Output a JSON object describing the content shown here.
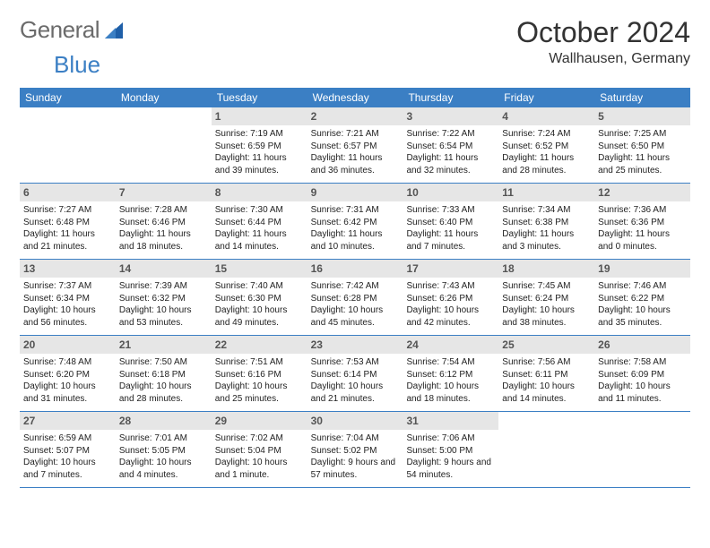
{
  "logo": {
    "word1": "General",
    "word2": "Blue"
  },
  "title": "October 2024",
  "location": "Wallhausen, Germany",
  "colors": {
    "header_bg": "#3b7fc4",
    "header_text": "#ffffff",
    "daynum_bg": "#e6e6e6",
    "daynum_text": "#555555",
    "body_text": "#222222",
    "rule": "#3b7fc4",
    "logo_gray": "#6b6b6b",
    "logo_blue": "#3b7fc4",
    "page_bg": "#ffffff"
  },
  "typography": {
    "title_fontsize": 32,
    "location_fontsize": 16,
    "weekday_fontsize": 12,
    "daynum_fontsize": 12,
    "body_fontsize": 10
  },
  "weekdays": [
    "Sunday",
    "Monday",
    "Tuesday",
    "Wednesday",
    "Thursday",
    "Friday",
    "Saturday"
  ],
  "weeks": [
    [
      null,
      null,
      {
        "n": "1",
        "sunrise": "7:19 AM",
        "sunset": "6:59 PM",
        "day_h": "11",
        "day_m": "39"
      },
      {
        "n": "2",
        "sunrise": "7:21 AM",
        "sunset": "6:57 PM",
        "day_h": "11",
        "day_m": "36"
      },
      {
        "n": "3",
        "sunrise": "7:22 AM",
        "sunset": "6:54 PM",
        "day_h": "11",
        "day_m": "32"
      },
      {
        "n": "4",
        "sunrise": "7:24 AM",
        "sunset": "6:52 PM",
        "day_h": "11",
        "day_m": "28"
      },
      {
        "n": "5",
        "sunrise": "7:25 AM",
        "sunset": "6:50 PM",
        "day_h": "11",
        "day_m": "25"
      }
    ],
    [
      {
        "n": "6",
        "sunrise": "7:27 AM",
        "sunset": "6:48 PM",
        "day_h": "11",
        "day_m": "21"
      },
      {
        "n": "7",
        "sunrise": "7:28 AM",
        "sunset": "6:46 PM",
        "day_h": "11",
        "day_m": "18"
      },
      {
        "n": "8",
        "sunrise": "7:30 AM",
        "sunset": "6:44 PM",
        "day_h": "11",
        "day_m": "14"
      },
      {
        "n": "9",
        "sunrise": "7:31 AM",
        "sunset": "6:42 PM",
        "day_h": "11",
        "day_m": "10"
      },
      {
        "n": "10",
        "sunrise": "7:33 AM",
        "sunset": "6:40 PM",
        "day_h": "11",
        "day_m": "7"
      },
      {
        "n": "11",
        "sunrise": "7:34 AM",
        "sunset": "6:38 PM",
        "day_h": "11",
        "day_m": "3"
      },
      {
        "n": "12",
        "sunrise": "7:36 AM",
        "sunset": "6:36 PM",
        "day_h": "11",
        "day_m": "0"
      }
    ],
    [
      {
        "n": "13",
        "sunrise": "7:37 AM",
        "sunset": "6:34 PM",
        "day_h": "10",
        "day_m": "56"
      },
      {
        "n": "14",
        "sunrise": "7:39 AM",
        "sunset": "6:32 PM",
        "day_h": "10",
        "day_m": "53"
      },
      {
        "n": "15",
        "sunrise": "7:40 AM",
        "sunset": "6:30 PM",
        "day_h": "10",
        "day_m": "49"
      },
      {
        "n": "16",
        "sunrise": "7:42 AM",
        "sunset": "6:28 PM",
        "day_h": "10",
        "day_m": "45"
      },
      {
        "n": "17",
        "sunrise": "7:43 AM",
        "sunset": "6:26 PM",
        "day_h": "10",
        "day_m": "42"
      },
      {
        "n": "18",
        "sunrise": "7:45 AM",
        "sunset": "6:24 PM",
        "day_h": "10",
        "day_m": "38"
      },
      {
        "n": "19",
        "sunrise": "7:46 AM",
        "sunset": "6:22 PM",
        "day_h": "10",
        "day_m": "35"
      }
    ],
    [
      {
        "n": "20",
        "sunrise": "7:48 AM",
        "sunset": "6:20 PM",
        "day_h": "10",
        "day_m": "31"
      },
      {
        "n": "21",
        "sunrise": "7:50 AM",
        "sunset": "6:18 PM",
        "day_h": "10",
        "day_m": "28"
      },
      {
        "n": "22",
        "sunrise": "7:51 AM",
        "sunset": "6:16 PM",
        "day_h": "10",
        "day_m": "25"
      },
      {
        "n": "23",
        "sunrise": "7:53 AM",
        "sunset": "6:14 PM",
        "day_h": "10",
        "day_m": "21"
      },
      {
        "n": "24",
        "sunrise": "7:54 AM",
        "sunset": "6:12 PM",
        "day_h": "10",
        "day_m": "18"
      },
      {
        "n": "25",
        "sunrise": "7:56 AM",
        "sunset": "6:11 PM",
        "day_h": "10",
        "day_m": "14"
      },
      {
        "n": "26",
        "sunrise": "7:58 AM",
        "sunset": "6:09 PM",
        "day_h": "10",
        "day_m": "11"
      }
    ],
    [
      {
        "n": "27",
        "sunrise": "6:59 AM",
        "sunset": "5:07 PM",
        "day_h": "10",
        "day_m": "7"
      },
      {
        "n": "28",
        "sunrise": "7:01 AM",
        "sunset": "5:05 PM",
        "day_h": "10",
        "day_m": "4"
      },
      {
        "n": "29",
        "sunrise": "7:02 AM",
        "sunset": "5:04 PM",
        "day_h": "10",
        "day_m": "1",
        "minute_word": "minute"
      },
      {
        "n": "30",
        "sunrise": "7:04 AM",
        "sunset": "5:02 PM",
        "day_h": "9",
        "day_m": "57"
      },
      {
        "n": "31",
        "sunrise": "7:06 AM",
        "sunset": "5:00 PM",
        "day_h": "9",
        "day_m": "54"
      },
      null,
      null
    ]
  ],
  "labels": {
    "sunrise_prefix": "Sunrise: ",
    "sunset_prefix": "Sunset: ",
    "daylight_prefix": "Daylight: ",
    "hours_word": " hours",
    "and_word": "and ",
    "minutes_word": " minutes."
  }
}
